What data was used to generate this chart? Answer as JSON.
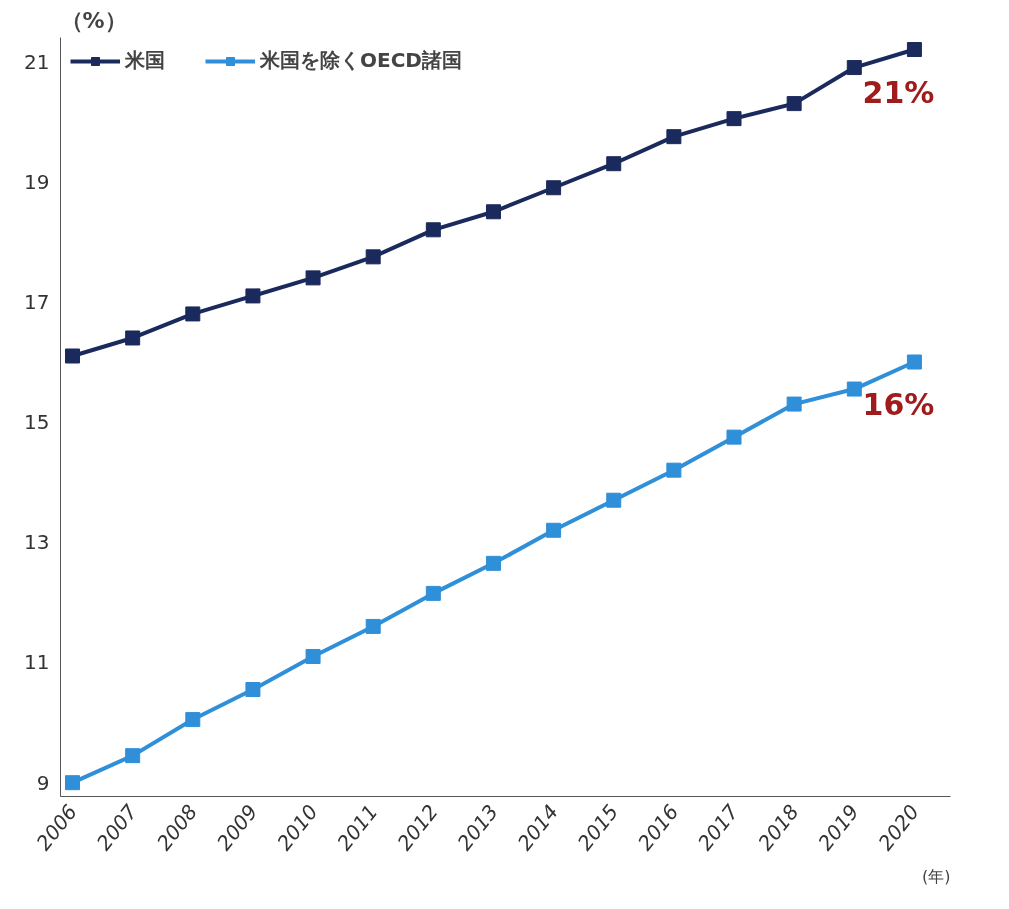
{
  "chart_data": {
    "type": "line",
    "ylabel": "（%）",
    "xlabel": "(年)",
    "x": [
      2006,
      2007,
      2008,
      2009,
      2010,
      2011,
      2012,
      2013,
      2014,
      2015,
      2016,
      2017,
      2018,
      2019,
      2020
    ],
    "series": [
      {
        "name": "米国",
        "color": "#1b2a5c",
        "values": [
          16.1,
          16.4,
          16.8,
          17.1,
          17.4,
          17.75,
          18.2,
          18.5,
          18.9,
          19.3,
          19.75,
          20.05,
          20.3,
          20.9,
          21.2
        ]
      },
      {
        "name": "米国を除くOECD諸国",
        "color": "#2f8fd8",
        "values": [
          9.0,
          9.45,
          10.05,
          10.55,
          11.1,
          11.6,
          12.15,
          12.65,
          13.2,
          13.7,
          14.2,
          14.75,
          15.3,
          15.55,
          16.0
        ]
      }
    ],
    "annotations": [
      {
        "text": "21%",
        "x": 2020,
        "y": 21.2
      },
      {
        "text": "16%",
        "x": 2020,
        "y": 16.0
      }
    ],
    "xlim": [
      2005.8,
      2020.6
    ],
    "ylim": [
      8.77,
      21.4
    ],
    "xticks": [
      2006,
      2007,
      2008,
      2009,
      2010,
      2011,
      2012,
      2013,
      2014,
      2015,
      2016,
      2017,
      2018,
      2019,
      2020
    ],
    "yticks": [
      9,
      11,
      13,
      15,
      17,
      19,
      21
    ],
    "grid": false,
    "legend": "top left",
    "marker": "square",
    "line_style": "solid"
  }
}
